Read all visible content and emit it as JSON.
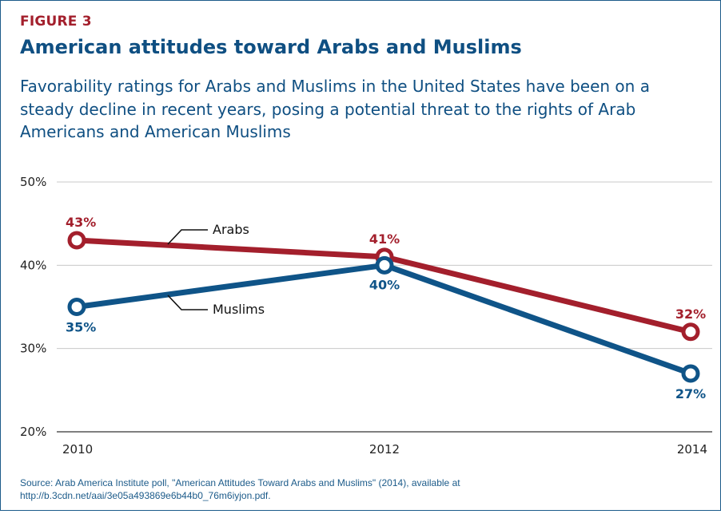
{
  "figure_label": "FIGURE 3",
  "title": "American attitudes toward Arabs and Muslims",
  "subtitle": "Favorability ratings for Arabs and Muslims in the United States have been on a steady decline in recent years, posing a potential threat to the rights of Arab Americans and American Muslims",
  "source": "Source: Arab America Institute poll, \"American Attitudes Toward Arabs and Muslims\" (2014), available at http://b.3cdn.net/aai/3e05a493869e6b44b0_76m6iyjon.pdf.",
  "colors": {
    "arabs": "#a31f2c",
    "muslims": "#0f5488",
    "grid": "#c8c8c8",
    "title": "#0f4f82"
  },
  "chart_data": {
    "type": "line",
    "categories": [
      "2010",
      "2012",
      "2014"
    ],
    "x": [
      2010,
      2012,
      2014
    ],
    "ylim": [
      20,
      50
    ],
    "yticks": [
      20,
      30,
      40,
      50
    ],
    "ytick_labels": [
      "20%",
      "30%",
      "40%",
      "50%"
    ],
    "grid": true,
    "series": [
      {
        "name": "Arabs",
        "values": [
          43,
          41,
          32
        ],
        "labels": [
          "43%",
          "41%",
          "32%"
        ],
        "color": "#a31f2c"
      },
      {
        "name": "Muslims",
        "values": [
          35,
          40,
          27
        ],
        "labels": [
          "35%",
          "40%",
          "27%"
        ],
        "color": "#0f5488"
      }
    ]
  }
}
